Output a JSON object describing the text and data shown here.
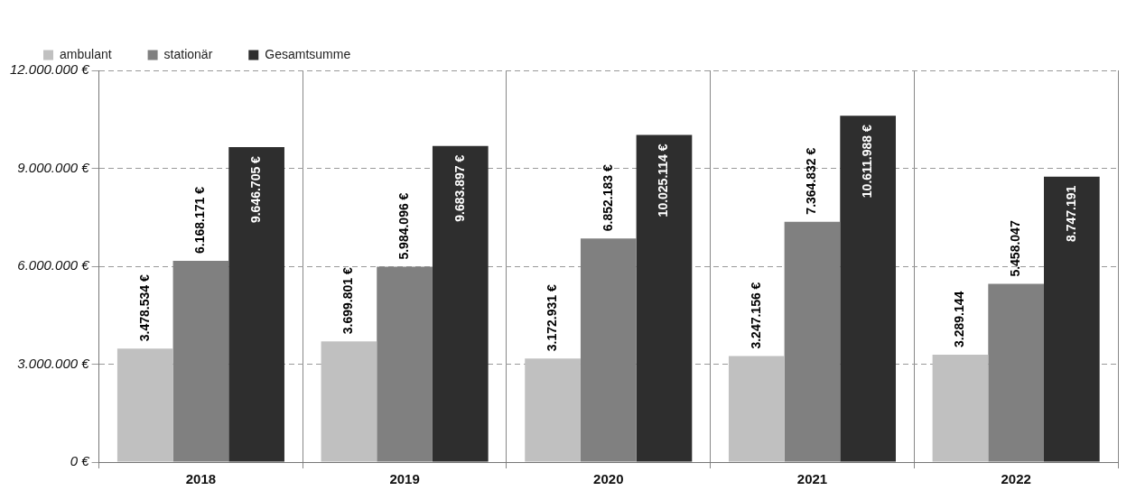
{
  "chart_data": {
    "type": "bar",
    "categories": [
      "2018",
      "2019",
      "2020",
      "2021",
      "2022"
    ],
    "series": [
      {
        "name": "ambulant",
        "color": "#c0c0c0",
        "values": [
          3478534,
          3699801,
          3172931,
          3247156,
          3289144
        ],
        "value_labels": [
          "3.478.534 €",
          "3.699.801 €",
          "3.172.931 €",
          "3.247.156 €",
          "3.289.144"
        ]
      },
      {
        "name": "stationär",
        "color": "#808080",
        "values": [
          6168171,
          5984096,
          6852183,
          7364832,
          5458047
        ],
        "value_labels": [
          "6.168.171 €",
          "5.984.096 €",
          "6.852.183 €",
          "7.364.832 €",
          "5.458.047"
        ]
      },
      {
        "name": "Gesamtsumme",
        "color": "#2e2e2e",
        "values": [
          9646705,
          9683897,
          10025114,
          10611988,
          8747191
        ],
        "value_labels": [
          "9.646.705 €",
          "9.683.897 €",
          "10.025.114 €",
          "10.611.988 €",
          "8.747.191"
        ]
      }
    ],
    "ylim": [
      0,
      12000000
    ],
    "yticks": [
      {
        "value": 0,
        "label": "0 €"
      },
      {
        "value": 3000000,
        "label": "3.000.000 €"
      },
      {
        "value": 6000000,
        "label": "6.000.000 €"
      },
      {
        "value": 9000000,
        "label": "9.000.000 €"
      },
      {
        "value": 12000000,
        "label": "12.000.000 €"
      }
    ],
    "grid": true,
    "legend": "top left"
  }
}
